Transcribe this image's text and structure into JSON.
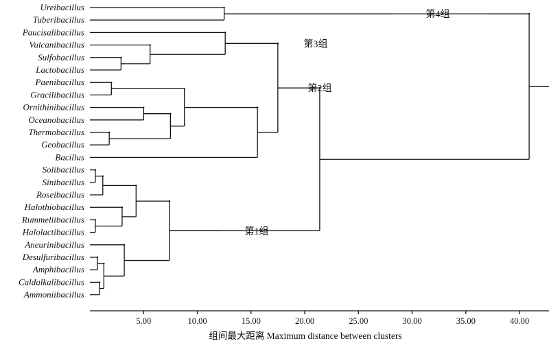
{
  "diagram": {
    "type": "dendrogram",
    "leaves": [
      "Ureibacillus",
      "Tuberibacillus",
      "Paucisalibacillus",
      "Vulcanibacillus",
      "Sulfobacillus",
      "Lactobacillus",
      "Paenibacillus",
      "Gracilibacillus",
      "Ornithinibacillus",
      "Oceanobacillus",
      "Thermobacillus",
      "Geobacillus",
      "Bacillus",
      "Solibacillus",
      "Sinibacillus",
      "Roseibacillus",
      "Halothiobacillus",
      "Rummeliibacillus",
      "Halolactibacillus",
      "Aneurinibacillus",
      "Desulfuribacillus",
      "Amphibacillus",
      "Caldalkalibacillus",
      "Ammoniibacillus"
    ],
    "merges": [
      {
        "id": "m1",
        "children": [
          "Ureibacillus",
          "Tuberibacillus"
        ],
        "distance": 12.5
      },
      {
        "id": "m2",
        "children": [
          "Lactobacillus",
          "Sulfobacillus"
        ],
        "distance": 2.9
      },
      {
        "id": "m3",
        "children": [
          "m2",
          "Vulcanibacillus"
        ],
        "distance": 5.6
      },
      {
        "id": "m4",
        "children": [
          "m3",
          "Paucisalibacillus"
        ],
        "distance": 12.6
      },
      {
        "id": "m5",
        "children": [
          "Paenibacillus",
          "Gracilibacillus"
        ],
        "distance": 2.0
      },
      {
        "id": "m6",
        "children": [
          "Ornithinibacillus",
          "Oceanobacillus"
        ],
        "distance": 5.0
      },
      {
        "id": "m7",
        "children": [
          "Thermobacillus",
          "Geobacillus"
        ],
        "distance": 1.8
      },
      {
        "id": "m8",
        "children": [
          "m6",
          "m7"
        ],
        "distance": 7.5
      },
      {
        "id": "m9",
        "children": [
          "m5",
          "m8"
        ],
        "distance": 8.8
      },
      {
        "id": "m10",
        "children": [
          "m9",
          "Bacillus"
        ],
        "distance": 15.6
      },
      {
        "id": "m11",
        "children": [
          "m4",
          "m10"
        ],
        "distance": 17.5
      },
      {
        "id": "m12",
        "children": [
          "Solibacillus",
          "Sinibacillus"
        ],
        "distance": 0.5
      },
      {
        "id": "m13",
        "children": [
          "m12",
          "Roseibacillus"
        ],
        "distance": 1.2
      },
      {
        "id": "m14",
        "children": [
          "Rummeliibacillus",
          "Halolactibacillus"
        ],
        "distance": 0.5
      },
      {
        "id": "m15",
        "children": [
          "Halothiobacillus",
          "m14"
        ],
        "distance": 3.0
      },
      {
        "id": "m16",
        "children": [
          "m13",
          "m15"
        ],
        "distance": 4.3
      },
      {
        "id": "m17",
        "children": [
          "Desulfuribacillus",
          "Amphibacillus"
        ],
        "distance": 0.7
      },
      {
        "id": "m18",
        "children": [
          "Caldalkalibacillus",
          "Ammoniibacillus"
        ],
        "distance": 0.9
      },
      {
        "id": "m19",
        "children": [
          "m17",
          "m18"
        ],
        "distance": 1.3
      },
      {
        "id": "m20",
        "children": [
          "Aneurinibacillus",
          "m19"
        ],
        "distance": 3.2
      },
      {
        "id": "m21",
        "children": [
          "m16",
          "m20"
        ],
        "distance": 7.4
      },
      {
        "id": "m22",
        "children": [
          "m11",
          "m21"
        ],
        "distance": 21.4
      },
      {
        "id": "m23",
        "children": [
          "m1",
          "m22"
        ],
        "distance": 40.9
      }
    ],
    "groups": [
      {
        "label": "第4组",
        "node": "m1"
      },
      {
        "label": "第3组",
        "node": "m4"
      },
      {
        "label": "第2组",
        "node": "m11"
      },
      {
        "label": "第1组",
        "node": "m21"
      }
    ],
    "axis": {
      "xlim": [
        0,
        43
      ],
      "ticks": [
        5,
        10,
        15,
        20,
        25,
        30,
        35,
        40
      ],
      "tick_labels": [
        "5.00",
        "10.00",
        "15.00",
        "20.00",
        "25.00",
        "30.00",
        "35.00",
        "40.00"
      ],
      "title": "组间最大距离 Maximum distance between clusters"
    }
  }
}
